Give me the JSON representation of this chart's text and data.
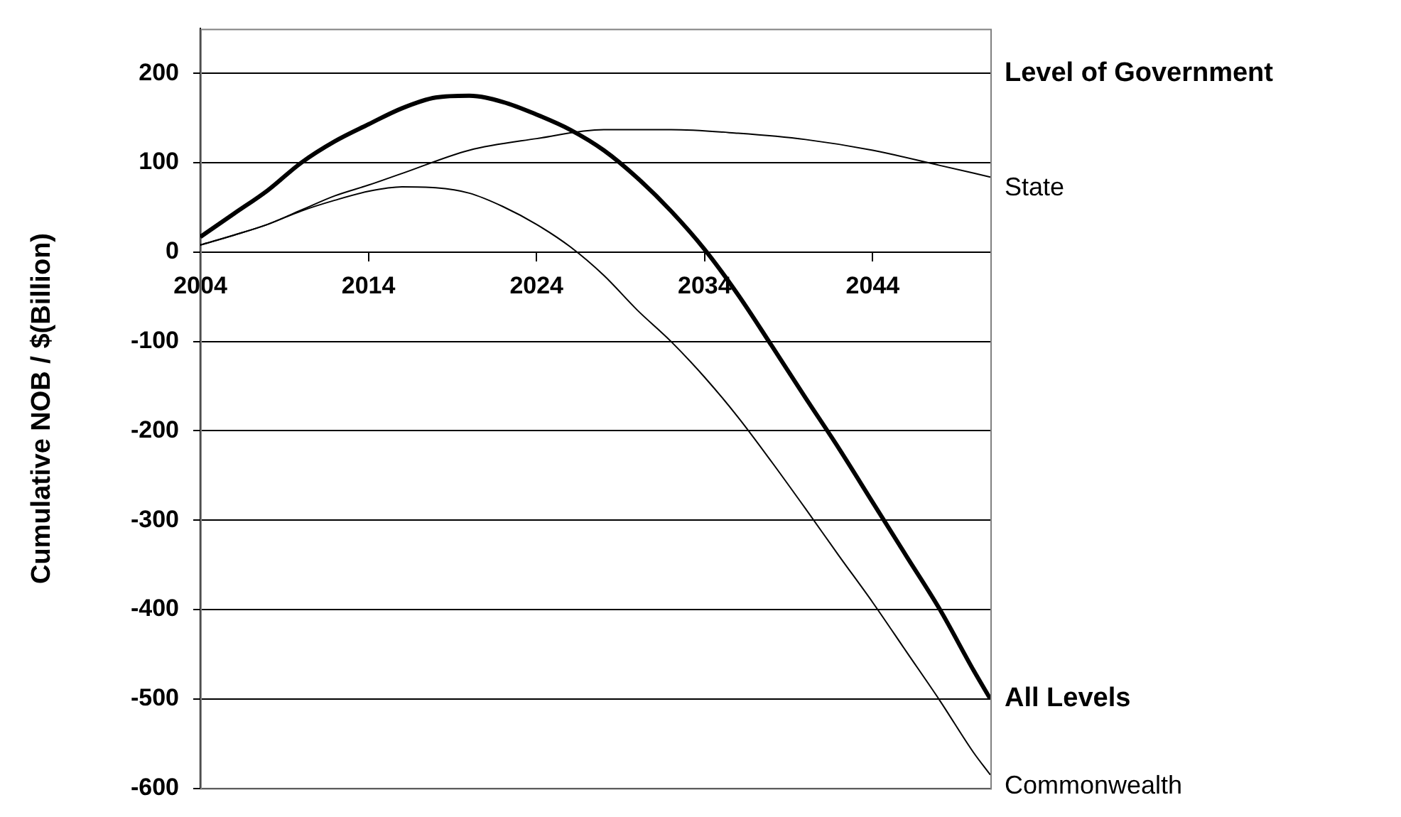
{
  "chart_data": {
    "type": "line",
    "ylabel": "Cumulative NOB / $(Billion)",
    "legend_title": "Level of Government",
    "xlim": [
      2004,
      2051
    ],
    "xticks": [
      2004,
      2014,
      2024,
      2034,
      2044
    ],
    "ylim": [
      -600,
      250
    ],
    "yticks": [
      -600,
      -500,
      -400,
      -300,
      -200,
      -100,
      0,
      100,
      200
    ],
    "grid": "y",
    "marker": "none",
    "line_style": "solid",
    "series": [
      {
        "name": "State",
        "color": "#000000",
        "x": [
          2004,
          2006,
          2008,
          2010,
          2012,
          2014,
          2016,
          2020,
          2024,
          2028,
          2032,
          2036,
          2040,
          2044,
          2048,
          2051
        ],
        "values": [
          8,
          19,
          31,
          47,
          63,
          75,
          88,
          114,
          127,
          137,
          137,
          133,
          126,
          114,
          97,
          84
        ]
      },
      {
        "name": "All Levels",
        "color": "#000000",
        "x": [
          2004,
          2006,
          2008,
          2010,
          2012,
          2014,
          2016,
          2018,
          2020,
          2022,
          2024,
          2026,
          2028,
          2030,
          2032,
          2034,
          2036,
          2038,
          2040,
          2042,
          2044,
          2046,
          2048,
          2050,
          2051
        ],
        "values": [
          17,
          43,
          69,
          100,
          124,
          143,
          161,
          173,
          175,
          168,
          154,
          137,
          114,
          83,
          46,
          3,
          -48,
          -105,
          -163,
          -220,
          -280,
          -340,
          -400,
          -468,
          -500
        ]
      },
      {
        "name": "Commonwealth",
        "color": "#000000",
        "x": [
          2004,
          2006,
          2008,
          2010,
          2012,
          2014,
          2016,
          2018,
          2020,
          2022,
          2024,
          2026,
          2028,
          2030,
          2032,
          2034,
          2036,
          2038,
          2040,
          2042,
          2044,
          2046,
          2048,
          2050,
          2051
        ],
        "values": [
          8,
          19,
          31,
          46,
          58,
          68,
          73,
          72,
          66,
          51,
          31,
          6,
          -26,
          -65,
          -100,
          -140,
          -185,
          -235,
          -287,
          -340,
          -392,
          -447,
          -502,
          -560,
          -585
        ]
      }
    ]
  }
}
